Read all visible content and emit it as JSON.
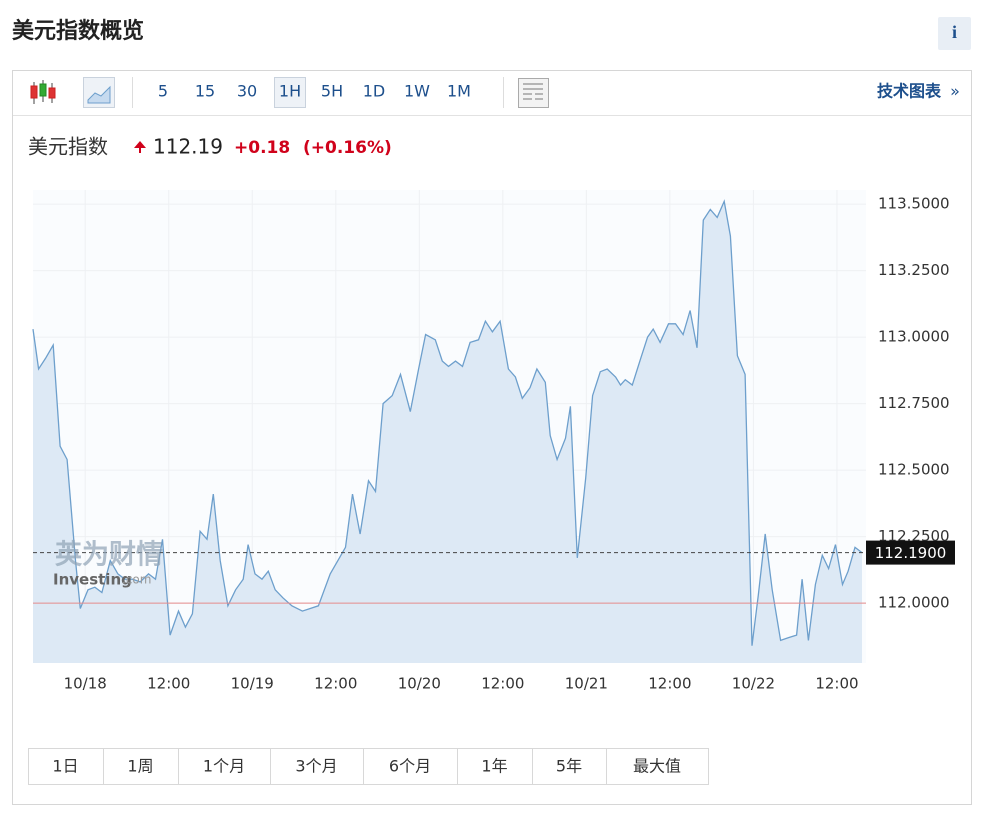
{
  "header": {
    "title": "美元指数概览",
    "info": "i"
  },
  "toolbar": {
    "intervals": [
      "5",
      "15",
      "30",
      "1H",
      "5H",
      "1D",
      "1W",
      "1M"
    ],
    "active": "1H",
    "link": "技术图表",
    "link_arrow": "»"
  },
  "quote": {
    "name": "美元指数",
    "price": "112.19",
    "change": "+0.18",
    "change_pct": "(+0.16%)"
  },
  "watermark": {
    "brand": "英为财情",
    "site": "Investing",
    "domain": ".com"
  },
  "chart_data": {
    "type": "line",
    "color": "#6d9fcc",
    "fill": "#dde9f5",
    "grid": true,
    "x": [
      -7.5,
      -6.7,
      -5.7,
      -4.6,
      -3.6,
      -2.6,
      -1.4,
      -0.7,
      0.4,
      1.4,
      2.4,
      3.6,
      4.7,
      5.7,
      6.8,
      7.9,
      9.1,
      10.1,
      11.1,
      12.2,
      13.4,
      14.4,
      15.4,
      16.5,
      17.5,
      18.4,
      19.4,
      20.5,
      21.6,
      22.7,
      23.4,
      24.4,
      25.4,
      26.3,
      27.3,
      28.4,
      29.7,
      31.2,
      33.5,
      35.2,
      37.4,
      38.4,
      39.5,
      40.7,
      41.7,
      42.8,
      44.1,
      45.3,
      46.7,
      47.9,
      48.9,
      50.3,
      51.3,
      52.2,
      53.2,
      54.2,
      55.3,
      56.5,
      57.5,
      58.5,
      59.6,
      60.8,
      61.8,
      62.8,
      63.9,
      64.9,
      66.1,
      66.8,
      67.8,
      69.0,
      69.7,
      70.7,
      71.9,
      72.9,
      74.0,
      75.0,
      76.2,
      76.9,
      77.6,
      78.6,
      79.8,
      80.8,
      81.6,
      82.6,
      83.8,
      84.8,
      85.9,
      86.9,
      87.9,
      88.8,
      89.8,
      90.8,
      91.8,
      92.7,
      93.7,
      94.8,
      95.8,
      96.7,
      97.7,
      98.7,
      99.9,
      101.0,
      102.2,
      103.0,
      103.9,
      104.9,
      105.9,
      106.8,
      107.8,
      108.8,
      109.6,
      110.6,
      111.6
    ],
    "values": [
      113.03,
      112.88,
      112.92,
      112.97,
      112.59,
      112.54,
      112.16,
      111.98,
      112.05,
      112.06,
      112.04,
      112.16,
      112.11,
      112.09,
      112.09,
      112.08,
      112.11,
      112.09,
      112.24,
      111.88,
      111.97,
      111.91,
      111.96,
      112.27,
      112.24,
      112.41,
      112.16,
      111.99,
      112.05,
      112.09,
      112.22,
      112.11,
      112.09,
      112.12,
      112.05,
      112.02,
      111.99,
      111.97,
      111.99,
      112.11,
      112.21,
      112.41,
      112.26,
      112.46,
      112.42,
      112.75,
      112.78,
      112.86,
      112.72,
      112.88,
      113.01,
      112.99,
      112.91,
      112.89,
      112.91,
      112.89,
      112.98,
      112.99,
      113.06,
      113.02,
      113.06,
      112.88,
      112.85,
      112.77,
      112.81,
      112.88,
      112.83,
      112.63,
      112.54,
      112.62,
      112.74,
      112.17,
      112.47,
      112.78,
      112.87,
      112.88,
      112.85,
      112.82,
      112.84,
      112.82,
      112.92,
      113.0,
      113.03,
      112.98,
      113.05,
      113.05,
      113.01,
      113.1,
      112.96,
      113.44,
      113.48,
      113.45,
      113.51,
      113.38,
      112.93,
      112.86,
      111.84,
      112.03,
      112.26,
      112.05,
      111.86,
      111.87,
      111.88,
      112.09,
      111.86,
      112.07,
      112.18,
      112.13,
      112.22,
      112.07,
      112.12,
      112.21,
      112.19
    ],
    "xlim": [
      -7.5,
      111.6
    ],
    "ylim": [
      111.775,
      113.553
    ],
    "xticks": [
      {
        "value": 0,
        "label": "10/18"
      },
      {
        "value": 12,
        "label": "12:00"
      },
      {
        "value": 24,
        "label": "10/19"
      },
      {
        "value": 36,
        "label": "12:00"
      },
      {
        "value": 48,
        "label": "10/20"
      },
      {
        "value": 60,
        "label": "12:00"
      },
      {
        "value": 72,
        "label": "10/21"
      },
      {
        "value": 84,
        "label": "12:00"
      },
      {
        "value": 96,
        "label": "10/22"
      },
      {
        "value": 108,
        "label": "12:00"
      }
    ],
    "yticks": [
      {
        "value": 112,
        "label": "112.0000"
      },
      {
        "value": 112.25,
        "label": "112.2500"
      },
      {
        "value": 112.5,
        "label": "112.5000"
      },
      {
        "value": 112.75,
        "label": "112.7500"
      },
      {
        "value": 113,
        "label": "113.0000"
      },
      {
        "value": 113.25,
        "label": "113.2500"
      },
      {
        "value": 113.5,
        "label": "113.5000"
      }
    ],
    "last_price": {
      "value": 112.19,
      "label": "112.1900"
    },
    "reference_value": 112
  },
  "ranges": [
    "1日",
    "1周",
    "1个月",
    "3个月",
    "6个月",
    "1年",
    "5年",
    "最大值"
  ]
}
